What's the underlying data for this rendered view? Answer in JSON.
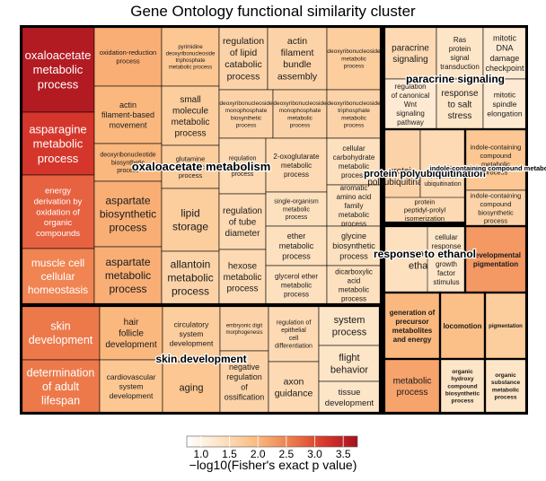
{
  "chart_data": {
    "type": "treemap",
    "title": "Gene Ontology functional similarity cluster",
    "legend": {
      "title": "−log10(Fisher's exact p value)",
      "ticks": [
        "1.0",
        "1.5",
        "2.0",
        "2.5",
        "3.0",
        "3.5"
      ],
      "colors": [
        "#ffffff",
        "#fde3c3",
        "#fbbd82",
        "#ef7f4e",
        "#d93a2c",
        "#a6101f"
      ],
      "range": [
        0.75,
        3.75
      ]
    },
    "groups": [
      {
        "name": "oxaloacetate metabolism",
        "tiles": [
          {
            "label": "oxaloacetate metabolic process",
            "value": 3.6
          },
          {
            "label": "asparagine metabolic process",
            "value": 3.2
          },
          {
            "label": "energy derivation by oxidation of organic compounds",
            "value": 2.8
          },
          {
            "label": "muscle cell cellular homeostasis",
            "value": 2.5
          },
          {
            "label": "oxidation-reduction process",
            "value": 2.1
          },
          {
            "label": "actin filament-based movement",
            "value": 2.0
          },
          {
            "label": "deoxyribonucleotide biosynthetic process",
            "value": 2.0
          },
          {
            "label": "aspartate biosynthetic process",
            "value": 2.1
          },
          {
            "label": "aspartate metabolic process",
            "value": 2.1
          },
          {
            "label": "pyrimidine deoxyribonucleoside triphosphate metabolic process",
            "value": 1.8
          },
          {
            "label": "small molecule metabolic process",
            "value": 1.7
          },
          {
            "label": "glutamine metabolic process",
            "value": 1.7
          },
          {
            "label": "lipid storage",
            "value": 1.7
          },
          {
            "label": "allantoin metabolic process",
            "value": 1.6
          },
          {
            "label": "regulation of lipid catabolic process",
            "value": 1.6
          },
          {
            "label": "actin filament bundle assembly",
            "value": 1.6
          },
          {
            "label": "deoxyribonucleoside metabolic process",
            "value": 1.7
          },
          {
            "label": "deoxyribonucleoside monophosphate biosynthetic process",
            "value": 1.6
          },
          {
            "label": "deoxyribonucleoside monophosphate metabolic process",
            "value": 1.6
          },
          {
            "label": "deoxyribonucleoside triphosphate metabolic process",
            "value": 1.6
          },
          {
            "label": "regulation of metabolic process",
            "value": 1.5
          },
          {
            "label": "regulation of tube diameter",
            "value": 1.5
          },
          {
            "label": "hexose metabolic process",
            "value": 1.5
          },
          {
            "label": "2-oxoglutarate metabolic process",
            "value": 1.5
          },
          {
            "label": "cellular carbohydrate metabolic process",
            "value": 1.4
          },
          {
            "label": "single-organism metabolic process",
            "value": 1.4
          },
          {
            "label": "aromatic amino acid family metabolic process",
            "value": 1.4
          },
          {
            "label": "ether metabolic process",
            "value": 1.4
          },
          {
            "label": "glycine biosynthetic process",
            "value": 1.4
          },
          {
            "label": "glycerol ether metabolic process",
            "value": 1.4
          },
          {
            "label": "dicarboxylic acid metabolic process",
            "value": 1.4
          }
        ]
      },
      {
        "name": "paracrine signaling",
        "tiles": [
          {
            "label": "paracrine signaling",
            "value": 1.5
          },
          {
            "label": "Ras protein signal transduction",
            "value": 1.3
          },
          {
            "label": "mitotic DNA damage checkpoint",
            "value": 1.2
          },
          {
            "label": "regulation of canonical Wnt signaling pathway",
            "value": 1.2
          },
          {
            "label": "response to salt stress",
            "value": 1.3
          },
          {
            "label": "mitotic spindle elongation",
            "value": 1.2
          }
        ]
      },
      {
        "name": "protein polyubiquitination",
        "tiles": [
          {
            "label": "protein polyubiquitination",
            "value": 1.6
          },
          {
            "label": "protein K48-linked ubiquitination",
            "value": 1.5
          },
          {
            "label": "protein peptidyl-prolyl isomerization",
            "value": 1.5
          }
        ]
      },
      {
        "name": "indole-containing compound metabolism",
        "tiles": [
          {
            "label": "indole-containing compound metabolic process",
            "value": 1.8
          },
          {
            "label": "indole-containing compound biosynthetic process",
            "value": 1.6
          }
        ]
      },
      {
        "name": "response to ethanol",
        "tiles": [
          {
            "label": "response to ethanol",
            "value": 1.4
          },
          {
            "label": "cellular response to growth factor stimulus",
            "value": 1.3
          }
        ]
      },
      {
        "name": "developmental pigmentation",
        "tiles": [
          {
            "label": "developmental pigmentation",
            "value": 2.3
          }
        ]
      },
      {
        "name": "generation of precursor metabolites and energy",
        "tiles": [
          {
            "label": "generation of precursor metabolites and energy",
            "value": 2.0
          }
        ]
      },
      {
        "name": "locomotion",
        "tiles": [
          {
            "label": "locomotion",
            "value": 1.9
          }
        ]
      },
      {
        "name": "pigmentation",
        "tiles": [
          {
            "label": "pigmentation",
            "value": 1.7
          }
        ]
      },
      {
        "name": "metabolic process",
        "tiles": [
          {
            "label": "metabolic process",
            "value": 2.2
          }
        ]
      },
      {
        "name": "organic hydroxy compound biosynthesis",
        "tiles": [
          {
            "label": "organic hydroxy compound biosynthetic process",
            "value": 1.3
          }
        ]
      },
      {
        "name": "organic substance metabolism",
        "tiles": [
          {
            "label": "organic substance metabolic process",
            "value": 1.3
          }
        ]
      },
      {
        "name": "skin development",
        "tiles": [
          {
            "label": "skin development",
            "value": 2.6
          },
          {
            "label": "determination of adult lifespan",
            "value": 2.6
          },
          {
            "label": "hair follicle development",
            "value": 2.0
          },
          {
            "label": "cardiovascular system development",
            "value": 1.8
          },
          {
            "label": "circulatory system development",
            "value": 1.7
          },
          {
            "label": "aging",
            "value": 1.8
          },
          {
            "label": "embryonic digit morphogenesis",
            "value": 1.6
          },
          {
            "label": "negative regulation of ossification",
            "value": 1.6
          },
          {
            "label": "regulation of epithelial cell differentiation",
            "value": 1.5
          },
          {
            "label": "axon guidance",
            "value": 1.5
          },
          {
            "label": "system process",
            "value": 1.3
          },
          {
            "label": "flight behavior",
            "value": 1.3
          },
          {
            "label": "tissue development",
            "value": 1.3
          }
        ]
      }
    ]
  }
}
